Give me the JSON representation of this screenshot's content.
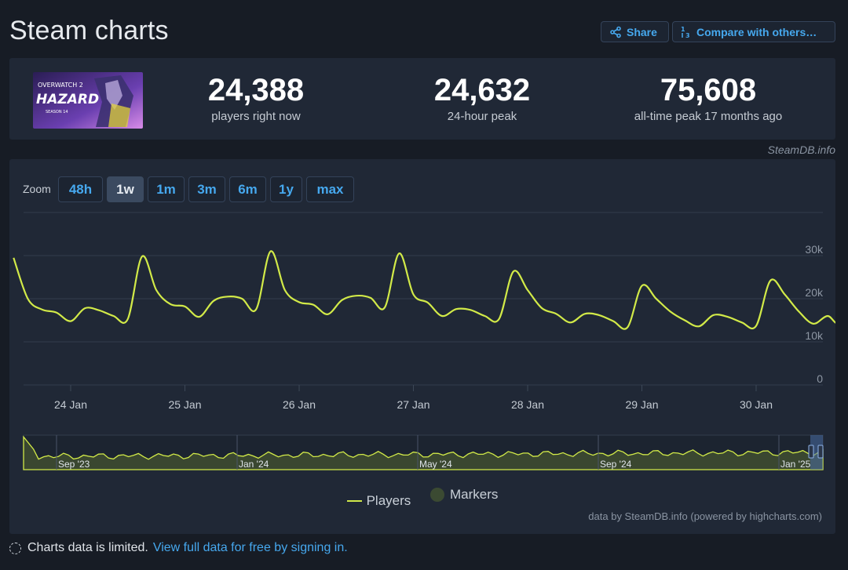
{
  "page": {
    "title": "Steam charts",
    "share_label": "Share",
    "compare_label": "Compare with others…",
    "credit_top": "SteamDB.info",
    "credit_bottom": "data by SteamDB.info (powered by highcharts.com)",
    "footer_text": "Charts data is limited.",
    "footer_link": "View full data for free by signing in."
  },
  "game": {
    "thumb_text_top": "OVERWATCH 2",
    "thumb_title": "HAZARD",
    "thumb_subtitle": "SEASON 14"
  },
  "stats": [
    {
      "value": "24,388",
      "label": "players right now"
    },
    {
      "value": "24,632",
      "label": "24-hour peak"
    },
    {
      "value": "75,608",
      "label": "all-time peak 17 months ago"
    }
  ],
  "zoom": {
    "label": "Zoom",
    "options": [
      "48h",
      "1w",
      "1m",
      "3m",
      "6m",
      "1y",
      "max"
    ],
    "active": "1w"
  },
  "legend": {
    "players": "Players",
    "markers": "Markers"
  },
  "colors": {
    "series": "#d2ea48",
    "accent": "#46a8ee"
  },
  "chart_data": {
    "type": "line",
    "series": [
      {
        "name": "Players",
        "x": [
          "2025-01-23 12:00",
          "2025-01-23 15:00",
          "2025-01-23 18:00",
          "2025-01-23 21:00",
          "2025-01-24 00:00",
          "2025-01-24 03:00",
          "2025-01-24 06:00",
          "2025-01-24 09:00",
          "2025-01-24 12:00",
          "2025-01-24 15:00",
          "2025-01-24 18:00",
          "2025-01-24 21:00",
          "2025-01-25 00:00",
          "2025-01-25 03:00",
          "2025-01-25 06:00",
          "2025-01-25 09:00",
          "2025-01-25 12:00",
          "2025-01-25 15:00",
          "2025-01-25 18:00",
          "2025-01-25 21:00",
          "2025-01-26 00:00",
          "2025-01-26 03:00",
          "2025-01-26 06:00",
          "2025-01-26 09:00",
          "2025-01-26 12:00",
          "2025-01-26 15:00",
          "2025-01-26 18:00",
          "2025-01-26 21:00",
          "2025-01-27 00:00",
          "2025-01-27 03:00",
          "2025-01-27 06:00",
          "2025-01-27 09:00",
          "2025-01-27 12:00",
          "2025-01-27 15:00",
          "2025-01-27 18:00",
          "2025-01-27 21:00",
          "2025-01-28 00:00",
          "2025-01-28 03:00",
          "2025-01-28 06:00",
          "2025-01-28 09:00",
          "2025-01-28 12:00",
          "2025-01-28 15:00",
          "2025-01-28 18:00",
          "2025-01-28 21:00",
          "2025-01-29 00:00",
          "2025-01-29 03:00",
          "2025-01-29 06:00",
          "2025-01-29 09:00",
          "2025-01-29 12:00",
          "2025-01-29 15:00",
          "2025-01-29 18:00",
          "2025-01-29 21:00",
          "2025-01-30 00:00",
          "2025-01-30 03:00",
          "2025-01-30 06:00",
          "2025-01-30 09:00",
          "2025-01-30 12:00",
          "2025-01-30 15:00",
          "2025-01-30 18:00",
          "2025-01-31 00:00"
        ],
        "values": [
          29500,
          20000,
          17500,
          16800,
          14800,
          17800,
          17300,
          16000,
          15300,
          29800,
          22000,
          18700,
          18200,
          15800,
          19500,
          20500,
          20000,
          17600,
          31000,
          22000,
          19200,
          18600,
          16400,
          19700,
          20700,
          20200,
          18000,
          30500,
          21000,
          19100,
          16000,
          17600,
          17400,
          16000,
          15300,
          26300,
          22000,
          17800,
          16500,
          14500,
          16500,
          16200,
          14800,
          13400,
          23000,
          20000,
          17000,
          15000,
          13600,
          16200,
          15800,
          14500,
          13700,
          24200,
          21000,
          17000,
          14200,
          16000,
          14600,
          24300
        ]
      }
    ],
    "x_tick_labels": [
      "24 Jan",
      "25 Jan",
      "26 Jan",
      "27 Jan",
      "28 Jan",
      "29 Jan",
      "30 Jan"
    ],
    "y_tick_labels": [
      "0",
      "10k",
      "20k",
      "30k"
    ],
    "ylim": [
      0,
      40000
    ],
    "navigator_labels": [
      "Sep '23",
      "Jan '24",
      "May '24",
      "Sep '24",
      "Jan '25"
    ],
    "legend_position": "bottom-center",
    "grid": true
  }
}
